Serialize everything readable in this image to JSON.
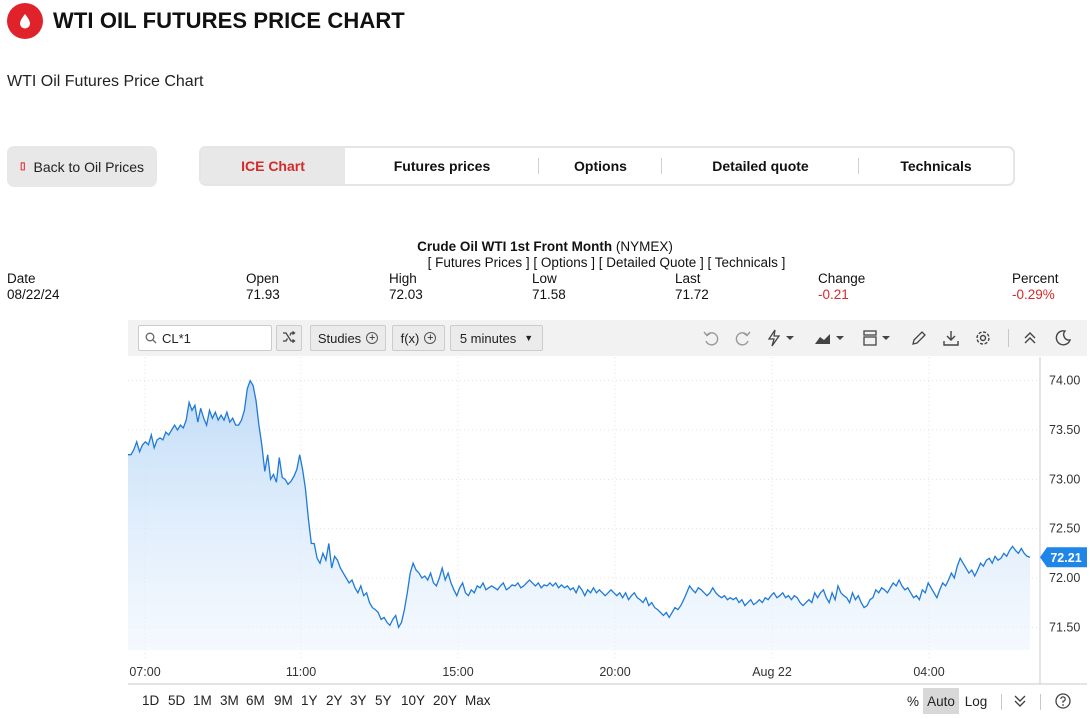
{
  "header": {
    "title": "WTI OIL FUTURES PRICE CHART",
    "subtitle": "WTI Oil Futures Price Chart"
  },
  "back_button": {
    "label": "Back to Oil Prices"
  },
  "tabs": [
    {
      "label": "ICE Chart",
      "active": true
    },
    {
      "label": "Futures prices",
      "active": false
    },
    {
      "label": "Options",
      "active": false
    },
    {
      "label": "Detailed quote",
      "active": false
    },
    {
      "label": "Technicals",
      "active": false
    }
  ],
  "quote": {
    "name": "Crude Oil WTI 1st Front Month",
    "exchange": "(NYMEX)",
    "links": "[ Futures Prices ] [ Options ] [ Detailed Quote ] [ Technicals ]",
    "columns": [
      {
        "label": "Date",
        "value": "08/22/24",
        "negative": false
      },
      {
        "label": "Open",
        "value": "71.93",
        "negative": false
      },
      {
        "label": "High",
        "value": "72.03",
        "negative": false
      },
      {
        "label": "Low",
        "value": "71.58",
        "negative": false
      },
      {
        "label": "Last",
        "value": "71.72",
        "negative": false
      },
      {
        "label": "Change",
        "value": "-0.21",
        "negative": true
      },
      {
        "label": "Percent",
        "value": "-0.29%",
        "negative": true
      }
    ]
  },
  "toolbar": {
    "symbol": "CL*1",
    "studies_label": "Studies",
    "fx_label": "f(x)",
    "interval_label": "5 minutes"
  },
  "icons": [
    "drop-icon",
    "search-icon",
    "shuffle-icon",
    "undo-icon",
    "redo-icon",
    "lightning-icon",
    "chart-type-icon",
    "layout-icon",
    "pencil-icon",
    "download-icon",
    "gear-icon",
    "collapse-icon",
    "moon-icon",
    "chevrons-down-icon",
    "help-icon"
  ],
  "colors": {
    "accent": "#d62a2a",
    "line": "#1f7ad8",
    "fill": "#cfe3fa",
    "badge": "#1f86e8"
  },
  "chart_data": {
    "type": "area",
    "title": "",
    "xlabel": "",
    "ylabel": "",
    "x_tick_labels": [
      "07:00",
      "11:00",
      "15:00",
      "20:00",
      "Aug 22",
      "04:00"
    ],
    "y_tick_labels": [
      "74.00",
      "73.50",
      "73.00",
      "72.50",
      "72.00",
      "71.50"
    ],
    "ylim": [
      71.27,
      74.24
    ],
    "last_value_label": "72.21",
    "series": [
      {
        "values": [
          73.25,
          73.25,
          73.3,
          73.38,
          73.28,
          73.35,
          73.38,
          73.35,
          73.45,
          73.32,
          73.4,
          73.42,
          73.4,
          73.48,
          73.45,
          73.5,
          73.55,
          73.5,
          73.55,
          73.52,
          73.6,
          73.78,
          73.7,
          73.75,
          73.58,
          73.72,
          73.62,
          73.55,
          73.7,
          73.62,
          73.68,
          73.6,
          73.65,
          73.6,
          73.68,
          73.58,
          73.62,
          73.55,
          73.55,
          73.6,
          73.7,
          73.92,
          74.0,
          73.95,
          73.8,
          73.55,
          73.35,
          73.08,
          73.25,
          73.0,
          73.05,
          72.97,
          73.22,
          73.02,
          73.0,
          72.95,
          72.98,
          73.03,
          73.1,
          73.25,
          73.1,
          72.9,
          72.6,
          72.35,
          72.35,
          72.2,
          72.15,
          72.25,
          72.18,
          72.35,
          72.1,
          72.22,
          72.18,
          72.1,
          72.05,
          72.0,
          71.95,
          71.98,
          71.9,
          71.85,
          71.92,
          71.82,
          71.85,
          71.75,
          71.7,
          71.68,
          71.65,
          71.58,
          71.6,
          71.55,
          71.52,
          71.58,
          71.62,
          71.5,
          71.55,
          71.68,
          71.85,
          72.05,
          72.15,
          72.08,
          72.05,
          72.0,
          72.02,
          71.98,
          72.05,
          71.95,
          71.92,
          72.0,
          72.1,
          71.98,
          72.05,
          71.95,
          71.88,
          71.82,
          71.9,
          71.95,
          71.85,
          71.82,
          71.88,
          71.85,
          71.92,
          71.9,
          71.95,
          71.88,
          71.9,
          71.92,
          71.9,
          71.88,
          71.92,
          71.95,
          71.88,
          71.9,
          71.93,
          71.92,
          71.95,
          71.9,
          71.92,
          71.95,
          71.98,
          71.95,
          71.92,
          71.95,
          71.9,
          71.93,
          71.92,
          71.95,
          71.92,
          71.95,
          71.9,
          71.93,
          71.9,
          71.92,
          71.88,
          71.9,
          71.85,
          71.92,
          71.88,
          71.82,
          71.88,
          71.85,
          71.9,
          71.85,
          71.88,
          71.85,
          71.82,
          71.85,
          71.88,
          71.85,
          71.82,
          71.85,
          71.8,
          71.85,
          71.78,
          71.82,
          71.85,
          71.8,
          71.78,
          71.75,
          71.8,
          71.72,
          71.75,
          71.7,
          71.68,
          71.65,
          71.62,
          71.65,
          71.6,
          71.65,
          71.7,
          71.68,
          71.72,
          71.78,
          71.85,
          71.92,
          71.88,
          71.85,
          71.9,
          71.88,
          71.85,
          71.82,
          71.85,
          71.9,
          71.85,
          71.82,
          71.8,
          71.82,
          71.78,
          71.8,
          71.78,
          71.8,
          71.75,
          71.78,
          71.72,
          71.75,
          71.78,
          71.73,
          71.75,
          71.78,
          71.75,
          71.8,
          71.78,
          71.82,
          71.85,
          71.8,
          71.82,
          71.85,
          71.8,
          71.82,
          71.78,
          71.82,
          71.8,
          71.75,
          71.72,
          71.75,
          71.78,
          71.75,
          71.85,
          71.8,
          71.85,
          71.88,
          71.8,
          71.75,
          71.85,
          71.78,
          71.92,
          71.85,
          71.82,
          71.8,
          71.75,
          71.85,
          71.78,
          71.82,
          71.75,
          71.7,
          71.72,
          71.78,
          71.8,
          71.88,
          71.85,
          71.9,
          71.88,
          71.85,
          71.9,
          71.95,
          71.92,
          71.98,
          71.92,
          71.88,
          71.9,
          71.85,
          71.8,
          71.82,
          71.78,
          71.88,
          71.85,
          71.95,
          71.9,
          71.85,
          71.8,
          71.88,
          71.95,
          71.92,
          71.98,
          72.05,
          72.0,
          72.12,
          72.2,
          72.15,
          72.1,
          72.05,
          72.08,
          72.02,
          72.08,
          72.15,
          72.12,
          72.18,
          72.2,
          72.15,
          72.22,
          72.18,
          72.2,
          72.25,
          72.22,
          72.28,
          72.32,
          72.28,
          72.25,
          72.3,
          72.25,
          72.22,
          72.21
        ]
      }
    ]
  },
  "ranges": [
    "1D",
    "5D",
    "1M",
    "3M",
    "6M",
    "9M",
    "1Y",
    "2Y",
    "3Y",
    "5Y",
    "10Y",
    "20Y",
    "Max"
  ],
  "scale_options": [
    {
      "label": "%",
      "active": false
    },
    {
      "label": "Auto",
      "active": true
    },
    {
      "label": "Log",
      "active": false
    }
  ]
}
